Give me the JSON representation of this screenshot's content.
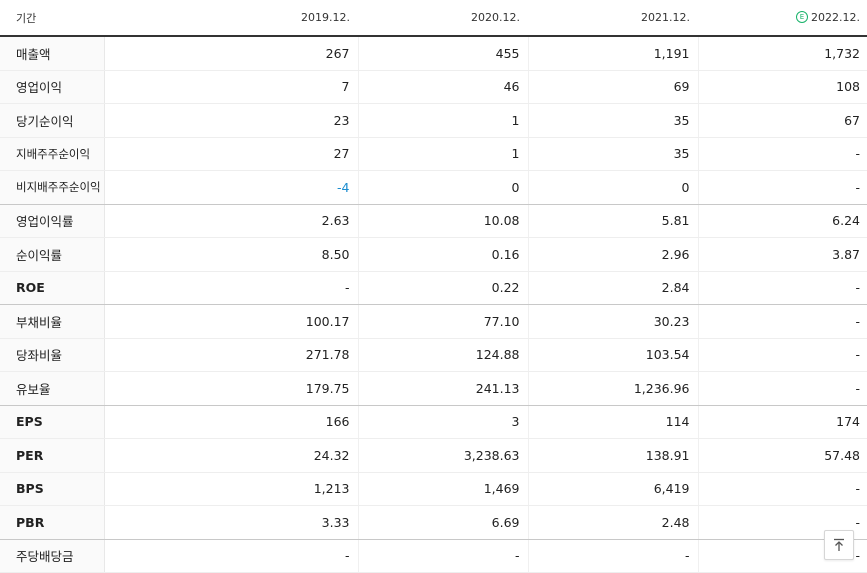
{
  "header": {
    "label": "기간",
    "periods": [
      "2019.12.",
      "2020.12.",
      "2021.12.",
      "2022.12."
    ],
    "estimate_badge": "E"
  },
  "rows": [
    {
      "label": "매출액",
      "values": [
        "267",
        "455",
        "1,191",
        "1,732"
      ]
    },
    {
      "label": "영업이익",
      "values": [
        "7",
        "46",
        "69",
        "108"
      ]
    },
    {
      "label": "당기순이익",
      "values": [
        "23",
        "1",
        "35",
        "67"
      ]
    },
    {
      "label": "지배주주순이익",
      "values": [
        "27",
        "1",
        "35",
        "-"
      ]
    },
    {
      "label": "비지배주주순이익",
      "values": [
        "-4",
        "0",
        "0",
        "-"
      ]
    },
    {
      "label": "영업이익률",
      "values": [
        "2.63",
        "10.08",
        "5.81",
        "6.24"
      ]
    },
    {
      "label": "순이익률",
      "values": [
        "8.50",
        "0.16",
        "2.96",
        "3.87"
      ]
    },
    {
      "label": "ROE",
      "values": [
        "-",
        "0.22",
        "2.84",
        "-"
      ]
    },
    {
      "label": "부채비율",
      "values": [
        "100.17",
        "77.10",
        "30.23",
        "-"
      ]
    },
    {
      "label": "당좌비율",
      "values": [
        "271.78",
        "124.88",
        "103.54",
        "-"
      ]
    },
    {
      "label": "유보율",
      "values": [
        "179.75",
        "241.13",
        "1,236.96",
        "-"
      ]
    },
    {
      "label": "EPS",
      "values": [
        "166",
        "3",
        "114",
        "174"
      ]
    },
    {
      "label": "PER",
      "values": [
        "24.32",
        "3,238.63",
        "138.91",
        "57.48"
      ]
    },
    {
      "label": "BPS",
      "values": [
        "1,213",
        "1,469",
        "6,419",
        "-"
      ]
    },
    {
      "label": "PBR",
      "values": [
        "3.33",
        "6.69",
        "2.48",
        "-"
      ]
    },
    {
      "label": "주당배당금",
      "values": [
        "-",
        "-",
        "-",
        "-"
      ]
    }
  ],
  "colors": {
    "negative": "#1a8ccf",
    "estimate": "#1ab36b"
  },
  "icons": {
    "scroll_top": "arrow-up-to-top-icon"
  }
}
